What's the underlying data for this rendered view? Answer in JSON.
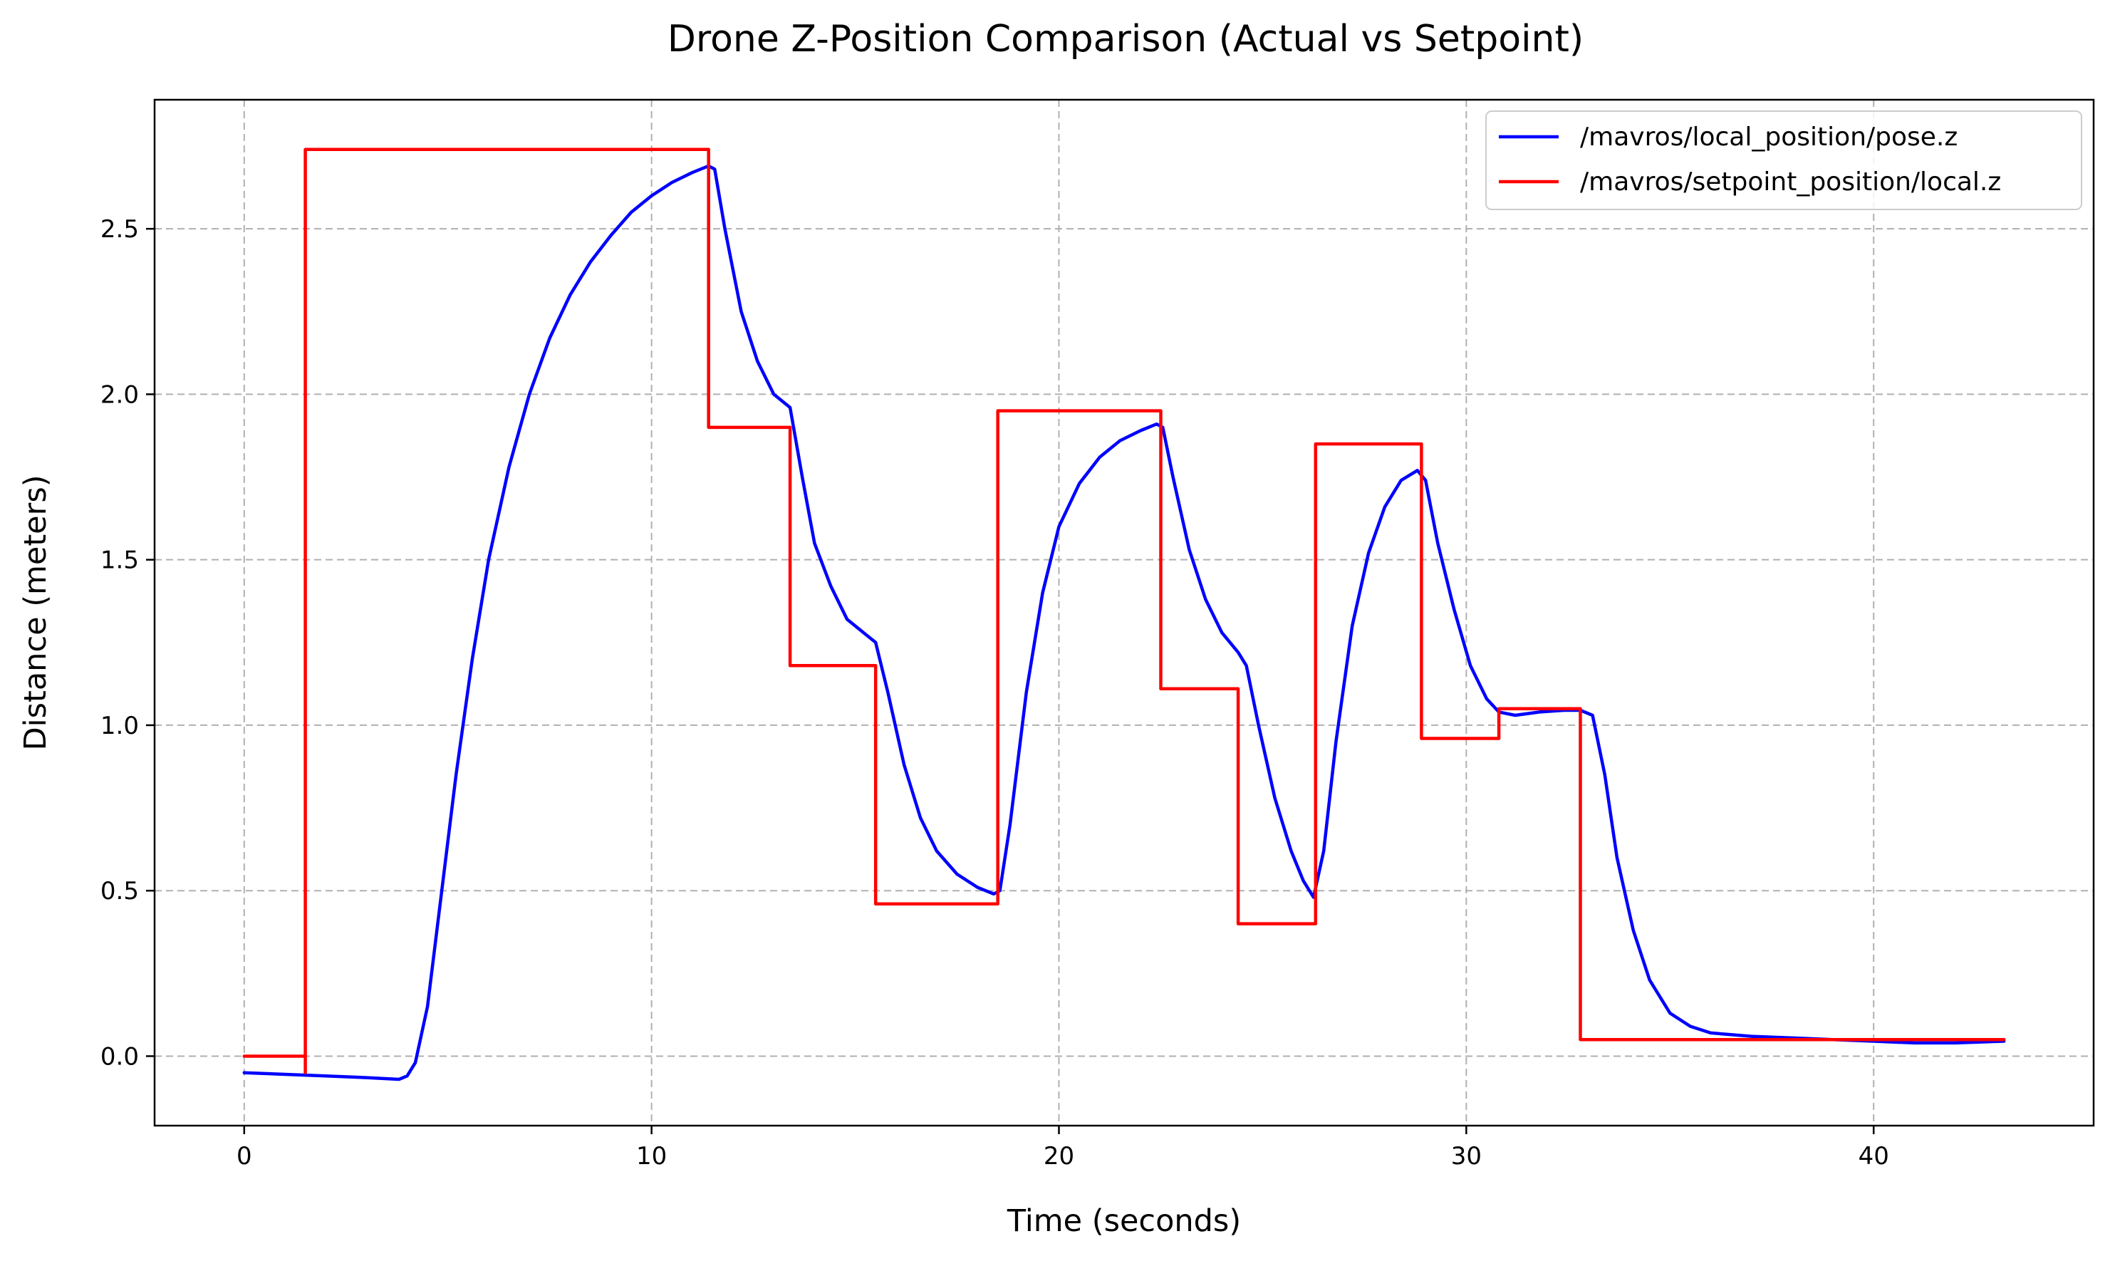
{
  "chart_data": {
    "type": "line",
    "title": "Drone Z-Position Comparison (Actual vs Setpoint)",
    "xlabel": "Time (seconds)",
    "ylabel": "Distance (meters)",
    "xlim": [
      -2.2,
      45.4
    ],
    "ylim": [
      -0.21,
      2.89
    ],
    "x_ticks": [
      0,
      10,
      20,
      30,
      40
    ],
    "y_ticks": [
      0.0,
      0.5,
      1.0,
      1.5,
      2.0,
      2.5
    ],
    "x_tick_labels": [
      "0",
      "10",
      "20",
      "30",
      "40"
    ],
    "y_tick_labels": [
      "0.0",
      "0.5",
      "1.0",
      "1.5",
      "2.0",
      "2.5"
    ],
    "grid": true,
    "legend_position": "top-right",
    "series": [
      {
        "name": "/mavros/local_position/pose.z",
        "color": "#0000ff",
        "points": [
          [
            0,
            -0.05
          ],
          [
            1,
            -0.055
          ],
          [
            2,
            -0.06
          ],
          [
            3,
            -0.065
          ],
          [
            3.8,
            -0.07
          ],
          [
            4.0,
            -0.06
          ],
          [
            4.2,
            -0.02
          ],
          [
            4.5,
            0.15
          ],
          [
            4.8,
            0.45
          ],
          [
            5.2,
            0.85
          ],
          [
            5.6,
            1.2
          ],
          [
            6.0,
            1.5
          ],
          [
            6.5,
            1.78
          ],
          [
            7.0,
            2.0
          ],
          [
            7.5,
            2.17
          ],
          [
            8.0,
            2.3
          ],
          [
            8.5,
            2.4
          ],
          [
            9.0,
            2.48
          ],
          [
            9.5,
            2.55
          ],
          [
            10.0,
            2.6
          ],
          [
            10.5,
            2.64
          ],
          [
            11.0,
            2.67
          ],
          [
            11.4,
            2.69
          ],
          [
            11.55,
            2.68
          ],
          [
            11.8,
            2.5
          ],
          [
            12.2,
            2.25
          ],
          [
            12.6,
            2.1
          ],
          [
            13.0,
            2.0
          ],
          [
            13.4,
            1.96
          ],
          [
            13.7,
            1.75
          ],
          [
            14.0,
            1.55
          ],
          [
            14.4,
            1.42
          ],
          [
            14.8,
            1.32
          ],
          [
            15.2,
            1.28
          ],
          [
            15.5,
            1.25
          ],
          [
            15.8,
            1.1
          ],
          [
            16.2,
            0.88
          ],
          [
            16.6,
            0.72
          ],
          [
            17.0,
            0.62
          ],
          [
            17.5,
            0.55
          ],
          [
            18.0,
            0.51
          ],
          [
            18.4,
            0.49
          ],
          [
            18.55,
            0.5
          ],
          [
            18.8,
            0.7
          ],
          [
            19.2,
            1.1
          ],
          [
            19.6,
            1.4
          ],
          [
            20.0,
            1.6
          ],
          [
            20.5,
            1.73
          ],
          [
            21.0,
            1.81
          ],
          [
            21.5,
            1.86
          ],
          [
            22.0,
            1.89
          ],
          [
            22.4,
            1.91
          ],
          [
            22.55,
            1.9
          ],
          [
            22.8,
            1.75
          ],
          [
            23.2,
            1.53
          ],
          [
            23.6,
            1.38
          ],
          [
            24.0,
            1.28
          ],
          [
            24.4,
            1.22
          ],
          [
            24.6,
            1.18
          ],
          [
            24.9,
            1.0
          ],
          [
            25.3,
            0.78
          ],
          [
            25.7,
            0.62
          ],
          [
            26.0,
            0.53
          ],
          [
            26.25,
            0.48
          ],
          [
            26.5,
            0.62
          ],
          [
            26.8,
            0.95
          ],
          [
            27.2,
            1.3
          ],
          [
            27.6,
            1.52
          ],
          [
            28.0,
            1.66
          ],
          [
            28.4,
            1.74
          ],
          [
            28.8,
            1.77
          ],
          [
            29.0,
            1.74
          ],
          [
            29.3,
            1.55
          ],
          [
            29.7,
            1.35
          ],
          [
            30.1,
            1.18
          ],
          [
            30.5,
            1.08
          ],
          [
            30.8,
            1.04
          ],
          [
            31.2,
            1.03
          ],
          [
            31.8,
            1.04
          ],
          [
            32.4,
            1.045
          ],
          [
            32.8,
            1.045
          ],
          [
            33.1,
            1.03
          ],
          [
            33.4,
            0.85
          ],
          [
            33.7,
            0.6
          ],
          [
            34.1,
            0.38
          ],
          [
            34.5,
            0.23
          ],
          [
            35.0,
            0.13
          ],
          [
            35.5,
            0.09
          ],
          [
            36.0,
            0.07
          ],
          [
            37.0,
            0.06
          ],
          [
            38.0,
            0.055
          ],
          [
            39.0,
            0.05
          ],
          [
            40.0,
            0.045
          ],
          [
            41.0,
            0.04
          ],
          [
            42.0,
            0.04
          ],
          [
            43.2,
            0.045
          ]
        ]
      },
      {
        "name": "/mavros/setpoint_position/local.z",
        "color": "#ff0000",
        "points": [
          [
            0,
            0.0
          ],
          [
            1.5,
            0.0
          ],
          [
            1.5,
            -0.05
          ],
          [
            1.5,
            2.74
          ],
          [
            11.4,
            2.74
          ],
          [
            11.4,
            1.9
          ],
          [
            13.4,
            1.9
          ],
          [
            13.4,
            1.18
          ],
          [
            15.5,
            1.18
          ],
          [
            15.5,
            0.46
          ],
          [
            18.5,
            0.46
          ],
          [
            18.5,
            1.95
          ],
          [
            22.5,
            1.95
          ],
          [
            22.5,
            1.11
          ],
          [
            24.4,
            1.11
          ],
          [
            24.4,
            0.4
          ],
          [
            26.3,
            0.4
          ],
          [
            26.3,
            1.85
          ],
          [
            28.9,
            1.85
          ],
          [
            28.9,
            0.96
          ],
          [
            30.8,
            0.96
          ],
          [
            30.8,
            1.05
          ],
          [
            32.8,
            1.05
          ],
          [
            32.8,
            0.05
          ],
          [
            43.2,
            0.05
          ]
        ]
      }
    ]
  }
}
